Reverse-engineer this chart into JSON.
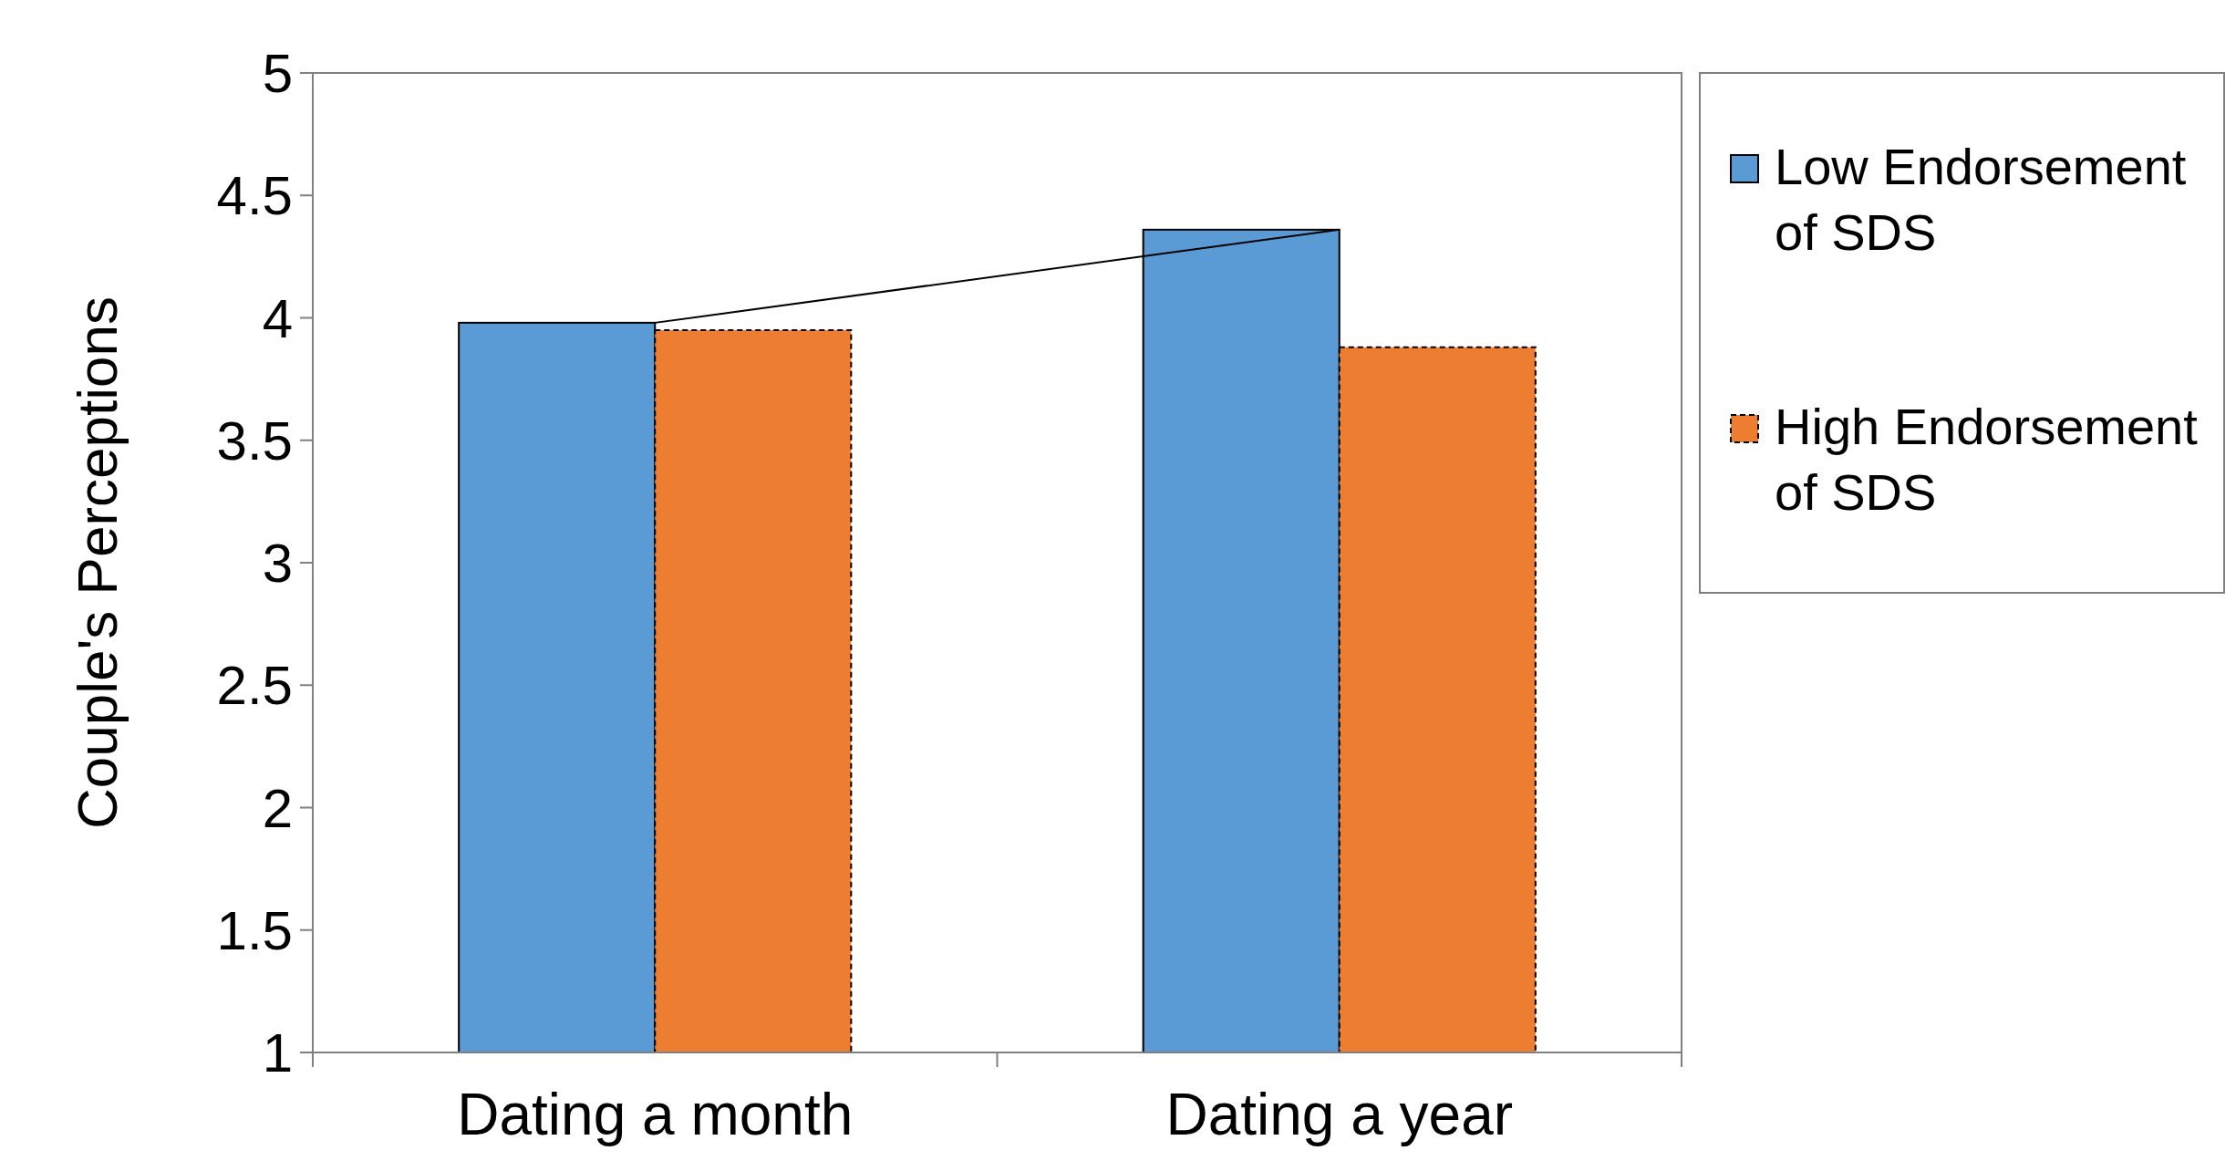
{
  "chart_data": {
    "type": "bar",
    "ylabel": "Couple's Perceptions",
    "categories": [
      "Dating a month",
      "Dating a year"
    ],
    "series": [
      {
        "name": "Low Endorsement of SDS",
        "color": "#5b9bd5",
        "values": [
          3.98,
          4.36
        ]
      },
      {
        "name": "High Endorsement of SDS",
        "color": "#ed7d31",
        "values": [
          3.95,
          3.88
        ],
        "line_style": "dashed"
      },
      {
        "type": "line",
        "color": "#000000",
        "values": [
          3.98,
          4.36
        ]
      }
    ],
    "ylim": [
      1,
      5
    ],
    "yticks": [
      1,
      1.5,
      2,
      2.5,
      3,
      3.5,
      4,
      4.5,
      5
    ],
    "grid": false,
    "legend": "right"
  }
}
